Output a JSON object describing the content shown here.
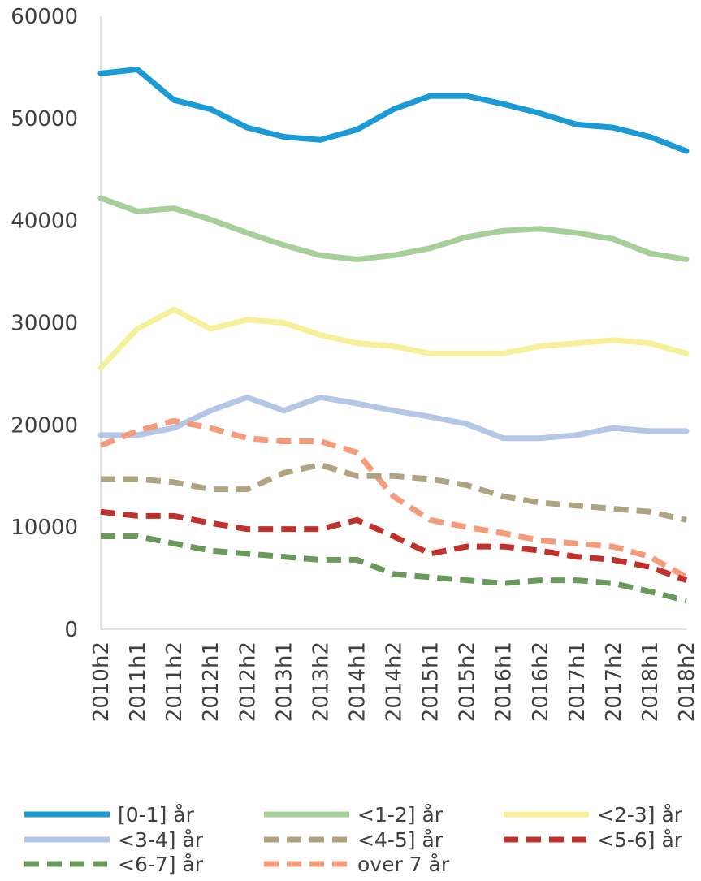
{
  "chart_data": {
    "type": "line",
    "title": "",
    "xlabel": "",
    "ylabel": "",
    "ylim": [
      0,
      60000
    ],
    "yticks": [
      "0",
      "10000",
      "20000",
      "30000",
      "40000",
      "50000",
      "60000"
    ],
    "x": [
      "2010h2",
      "2011h1",
      "2011h2",
      "2012h1",
      "2012h2",
      "2013h1",
      "2013h2",
      "2014h1",
      "2014h2",
      "2015h1",
      "2015h2",
      "2016h1",
      "2016h2",
      "2017h1",
      "2017h2",
      "2018h1",
      "2018h2"
    ],
    "grid": false,
    "legend_position": "bottom",
    "series": [
      {
        "name": "[0-1] år",
        "color": "#1a9ad6",
        "dashed": false,
        "values": [
          54400,
          54800,
          51800,
          50900,
          49100,
          48200,
          47900,
          48900,
          50900,
          52200,
          52200,
          51400,
          50500,
          49400,
          49100,
          48200,
          46800
        ]
      },
      {
        "name": "<1-2] år",
        "color": "#a6cf9a",
        "dashed": false,
        "values": [
          42200,
          40900,
          41200,
          40100,
          38800,
          37600,
          36600,
          36200,
          36600,
          37300,
          38400,
          39000,
          39200,
          38800,
          38200,
          36800,
          36200
        ]
      },
      {
        "name": "<2-3] år",
        "color": "#f7f09b",
        "dashed": false,
        "values": [
          25600,
          29400,
          31300,
          29400,
          30300,
          30000,
          28800,
          28000,
          27700,
          27000,
          27000,
          27000,
          27700,
          28000,
          28300,
          28000,
          27000
        ]
      },
      {
        "name": "<3-4] år",
        "color": "#b4c7e7",
        "dashed": false,
        "values": [
          19000,
          19000,
          19700,
          21400,
          22700,
          21400,
          22700,
          22100,
          21400,
          20800,
          20100,
          18700,
          18700,
          19000,
          19700,
          19400,
          19400
        ]
      },
      {
        "name": "<4-5] år",
        "color": "#b0a382",
        "dashed": true,
        "values": [
          14700,
          14700,
          14400,
          13700,
          13700,
          15300,
          16100,
          15000,
          15000,
          14700,
          14100,
          13000,
          12400,
          12100,
          11800,
          11500,
          10700
        ]
      },
      {
        "name": "<5-6] år",
        "color": "#c0312b",
        "dashed": true,
        "values": [
          11500,
          11100,
          11100,
          10400,
          9800,
          9800,
          9800,
          10700,
          9100,
          7400,
          8100,
          8100,
          7700,
          7100,
          6800,
          6100,
          4800
        ]
      },
      {
        "name": "<6-7] år",
        "color": "#6a9a5b",
        "dashed": true,
        "values": [
          9100,
          9100,
          8400,
          7700,
          7400,
          7100,
          6800,
          6800,
          5400,
          5100,
          4800,
          4500,
          4800,
          4800,
          4500,
          3700,
          2800
        ]
      },
      {
        "name": "over 7 år",
        "color": "#f59b79",
        "dashed": true,
        "values": [
          18000,
          19400,
          20400,
          19700,
          18700,
          18400,
          18400,
          17300,
          13000,
          10700,
          10000,
          9400,
          8700,
          8400,
          8100,
          7100,
          5100
        ]
      }
    ]
  }
}
